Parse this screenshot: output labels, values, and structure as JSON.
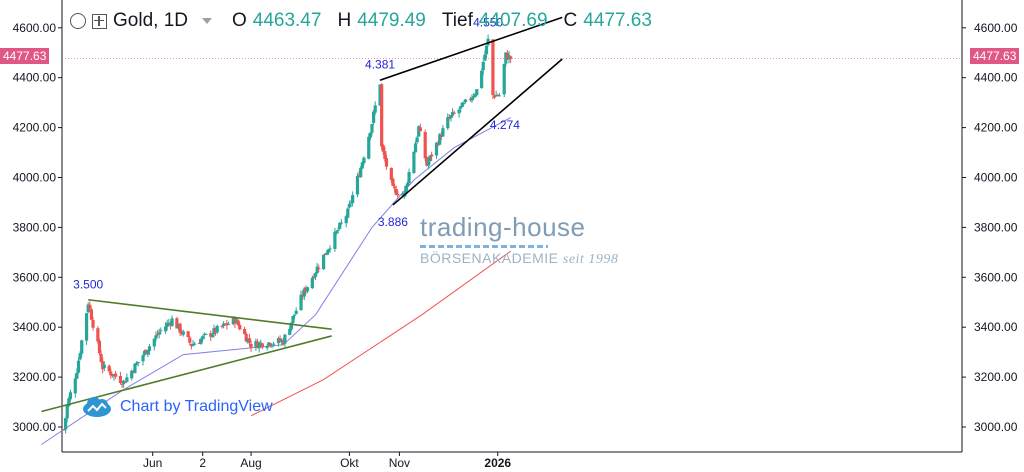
{
  "header": {
    "symbol": "Gold, 1D",
    "o_label": "O",
    "o_value": "4463.47",
    "h_label": "H",
    "h_value": "4479.49",
    "l_label": "Tief",
    "l_value": "4407.69",
    "c_label": "C",
    "c_value": "4477.63"
  },
  "watermark": {
    "brand": "trading-house",
    "sub": "BÖRSENAKADEMIE",
    "since": "seit 1998"
  },
  "attribution": "Chart by TradingView",
  "last_price_tag": "4477.63",
  "colors": {
    "up": "#26a69a",
    "down": "#ef5350",
    "ma_blue": "#7f7fe8",
    "ma_red": "#ef5350",
    "triangle": "#4e7d2a",
    "wedge": "#000000",
    "price_tag": "#e05785",
    "annotation": "#2424d6"
  },
  "chart_data": {
    "type": "candlestick",
    "title": "Gold, 1D",
    "x_ticks": [
      "Jun",
      "2",
      "Aug",
      "Okt",
      "Nov",
      "2026"
    ],
    "y_ticks": [
      "3000.00",
      "3200.00",
      "3400.00",
      "3600.00",
      "3800.00",
      "4000.00",
      "4200.00",
      "4400.00",
      "4600.00"
    ],
    "ylim": [
      2930,
      4700
    ],
    "grid": false,
    "ohlc_anchors": [
      {
        "date": "2025-04-07",
        "close": 2990
      },
      {
        "date": "2025-04-09",
        "close": 3085
      },
      {
        "date": "2025-04-15",
        "close": 3230
      },
      {
        "date": "2025-04-22",
        "close": 3500
      },
      {
        "date": "2025-05-01",
        "close": 3240
      },
      {
        "date": "2025-05-14",
        "close": 3180
      },
      {
        "date": "2025-06-05",
        "close": 3380
      },
      {
        "date": "2025-06-13",
        "close": 3430
      },
      {
        "date": "2025-06-25",
        "close": 3330
      },
      {
        "date": "2025-07-22",
        "close": 3430
      },
      {
        "date": "2025-08-01",
        "close": 3330
      },
      {
        "date": "2025-08-21",
        "close": 3345
      },
      {
        "date": "2025-09-02",
        "close": 3530
      },
      {
        "date": "2025-09-12",
        "close": 3650
      },
      {
        "date": "2025-09-30",
        "close": 3860
      },
      {
        "date": "2025-10-08",
        "close": 4040
      },
      {
        "date": "2025-10-15",
        "close": 4220
      },
      {
        "date": "2025-10-20",
        "close": 4381
      },
      {
        "date": "2025-10-21",
        "close": 4120
      },
      {
        "date": "2025-10-28",
        "close": 3950
      },
      {
        "date": "2025-11-04",
        "close": 3930
      },
      {
        "date": "2025-11-13",
        "close": 4200
      },
      {
        "date": "2025-11-18",
        "close": 4050
      },
      {
        "date": "2025-12-01",
        "close": 4230
      },
      {
        "date": "2025-12-11",
        "close": 4290
      },
      {
        "date": "2025-12-19",
        "close": 4350
      },
      {
        "date": "2025-12-26",
        "close": 4550
      },
      {
        "date": "2025-12-29",
        "close": 4330
      },
      {
        "date": "2026-01-02",
        "close": 4330
      },
      {
        "date": "2026-01-06",
        "close": 4490
      },
      {
        "date": "2026-01-09",
        "close": 4477.63
      }
    ],
    "series": [
      {
        "name": "",
        "kind": "ma",
        "color": "blue",
        "points": [
          [
            "2025-03-24",
            2930
          ],
          [
            "2025-05-14",
            3150
          ],
          [
            "2025-06-20",
            3290
          ],
          [
            "2025-08-21",
            3330
          ],
          [
            "2025-09-10",
            3450
          ],
          [
            "2025-10-15",
            3800
          ],
          [
            "2025-11-10",
            3990
          ],
          [
            "2025-12-05",
            4120
          ],
          [
            "2026-01-09",
            4240
          ]
        ]
      },
      {
        "name": "",
        "kind": "ma",
        "color": "red",
        "points": [
          [
            "2025-08-01",
            3045
          ],
          [
            "2025-09-15",
            3190
          ],
          [
            "2025-11-15",
            3450
          ],
          [
            "2026-01-09",
            3705
          ]
        ]
      }
    ],
    "annotations": [
      {
        "text": "3.500",
        "date": "2025-04-22",
        "value": 3500
      },
      {
        "text": "4.381",
        "date": "2025-10-20",
        "value": 4381
      },
      {
        "text": "3.886",
        "date": "2025-10-28",
        "value": 3886
      },
      {
        "text": "4.550",
        "date": "2025-12-26",
        "value": 4550
      },
      {
        "text": "4.274",
        "date": "2025-12-29",
        "value": 4274
      }
    ],
    "trendlines": [
      {
        "group": "triangle",
        "from": [
          "2025-03-24",
          3062
        ],
        "to": [
          "2025-09-20",
          3365
        ]
      },
      {
        "group": "triangle",
        "from": [
          "2025-04-22",
          3510
        ],
        "to": [
          "2025-09-20",
          3392
        ]
      },
      {
        "group": "wedge",
        "from": [
          "2025-10-20",
          4390
        ],
        "to": [
          "2026-02-10",
          4642
        ]
      },
      {
        "group": "wedge",
        "from": [
          "2025-10-28",
          3890
        ],
        "to": [
          "2026-02-10",
          4475
        ]
      }
    ]
  }
}
